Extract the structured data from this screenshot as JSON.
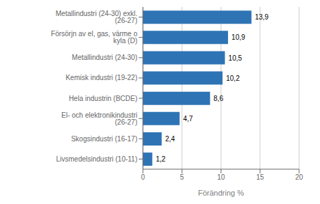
{
  "chart_data": {
    "type": "bar",
    "orientation": "horizontal",
    "categories": [
      "Livsmedelsindustri (10-11)",
      "Skogsindustri (16-17)",
      "El- och elektronikindustri (26-27)",
      "Hela industrin (BCDE)",
      "Kemisk industri (19-22)",
      "Metallindustri (24-30)",
      "Försörjn av el, gas, värme o kyla (D)",
      "Metallindustri (24-30) exkl. (26-27)"
    ],
    "values": [
      1.2,
      2.4,
      4.7,
      8.6,
      10.2,
      10.5,
      10.9,
      13.9
    ],
    "value_labels": [
      "1,2",
      "2,4",
      "4,7",
      "8,6",
      "10,2",
      "10,5",
      "10,9",
      "13,9"
    ],
    "color": "#2E74B5",
    "xlabel": "Förändring %",
    "xlim": [
      0,
      20
    ],
    "xticks": [
      0,
      5,
      10,
      15,
      20
    ],
    "grid": true,
    "data_labels": true
  }
}
